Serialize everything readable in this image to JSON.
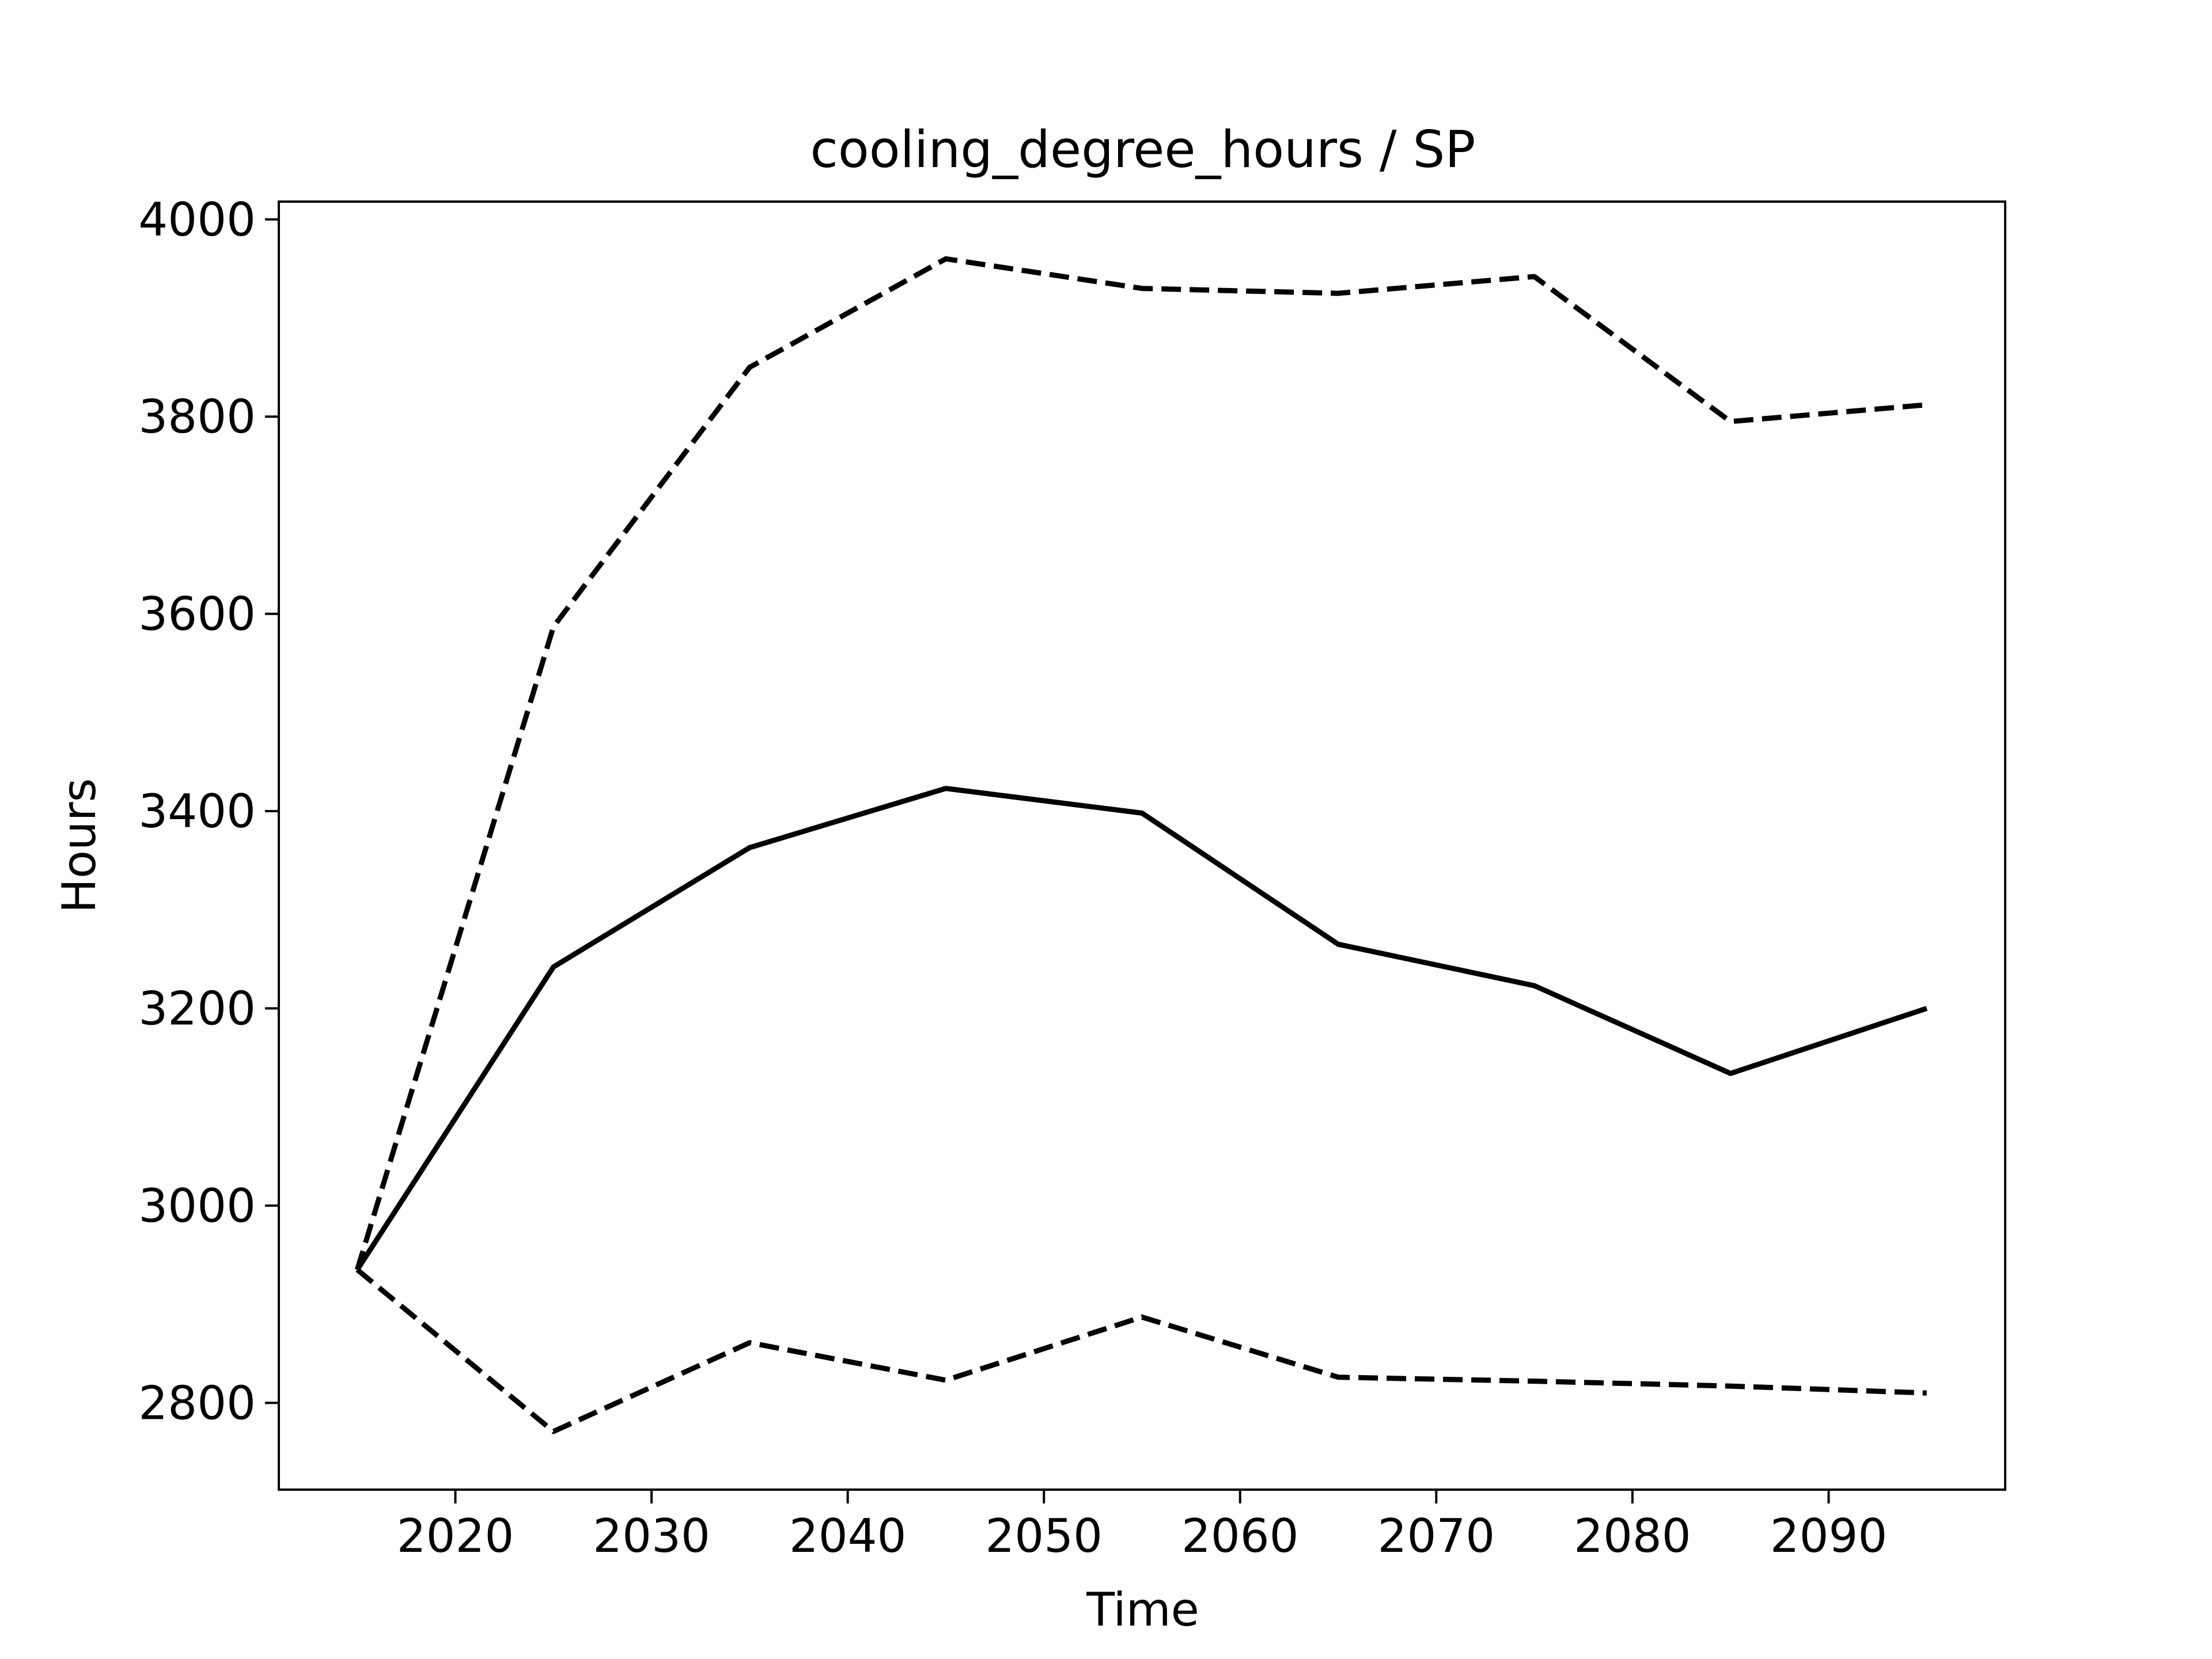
{
  "chart_data": {
    "type": "line",
    "title": "cooling_degree_hours / SP",
    "xlabel": "Time",
    "ylabel": "Hours",
    "xlim": [
      2011,
      2099
    ],
    "ylim": [
      2712,
      4018
    ],
    "x_ticks": [
      2020,
      2030,
      2040,
      2050,
      2060,
      2070,
      2080,
      2090
    ],
    "y_ticks": [
      2800,
      3000,
      3200,
      3400,
      3600,
      3800,
      4000
    ],
    "grid": false,
    "x": [
      2015,
      2025,
      2035,
      2045,
      2055,
      2065,
      2075,
      2085,
      2095
    ],
    "series": [
      {
        "style": "solid",
        "color": "#000000",
        "values": [
          2935,
          3242,
          3363,
          3423,
          3398,
          3265,
          3223,
          3134,
          3200
        ]
      },
      {
        "style": "dashed",
        "color": "#000000",
        "values": [
          2935,
          3587,
          3850,
          3960,
          3930,
          3925,
          3942,
          3795,
          3812
        ]
      },
      {
        "style": "dashed",
        "color": "#000000",
        "values": [
          2935,
          2771,
          2861,
          2823,
          2887,
          2826,
          2822,
          2817,
          2810
        ]
      }
    ]
  }
}
